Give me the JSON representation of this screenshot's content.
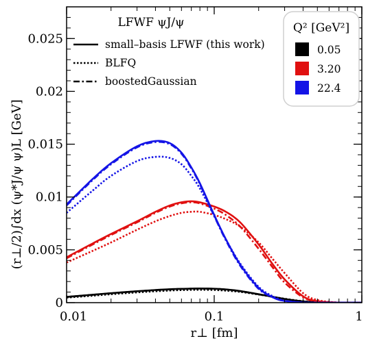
{
  "chart_data": {
    "type": "line",
    "title": "",
    "xlabel": "r⊥  [fm]",
    "ylabel": "(r⊥/2)∫dx (ψ*J/ψ ψ)L  [GeV]",
    "x_scale": "log",
    "xlim": [
      0.01,
      1
    ],
    "ylim": [
      0,
      0.028
    ],
    "grid": false,
    "x_ticks": [
      0.01,
      0.1,
      1
    ],
    "x_tick_labels": [
      "0.01",
      "0.1",
      "1"
    ],
    "y_ticks": [
      0,
      0.005,
      0.01,
      0.015,
      0.02,
      0.025
    ],
    "y_tick_labels": [
      "0",
      "0.005",
      "0.01",
      "0.015",
      "0.02",
      "0.025"
    ],
    "legend_linestyle": {
      "title": "LFWF ψJ/ψ",
      "placement": "top-left",
      "entries": [
        {
          "label": "small–basis LFWF (this work)",
          "style": "solid"
        },
        {
          "label": "BLFQ",
          "style": "dotted"
        },
        {
          "label": "boostedGaussian",
          "style": "dashdot"
        }
      ]
    },
    "legend_color": {
      "title": "Q² [GeV²]",
      "placement": "top-right",
      "entries": [
        {
          "label": "0.05",
          "color": "#000000"
        },
        {
          "label": "3.20",
          "color": "#e01010"
        },
        {
          "label": "22.4",
          "color": "#1414e6"
        }
      ]
    },
    "x": [
      0.01,
      0.015,
      0.02,
      0.03,
      0.04,
      0.05,
      0.06,
      0.07,
      0.08,
      0.1,
      0.12,
      0.15,
      0.2,
      0.25,
      0.3,
      0.4,
      0.5,
      0.7,
      1.0
    ],
    "series": [
      {
        "group": "0.05",
        "style": "solid",
        "color": "#000000",
        "values": [
          0.00055,
          0.00075,
          0.0009,
          0.00108,
          0.0012,
          0.00127,
          0.00131,
          0.00133,
          0.00134,
          0.00132,
          0.00125,
          0.0011,
          0.0008,
          0.00055,
          0.00035,
          0.00012,
          4e-05,
          5e-06,
          0.0
        ]
      },
      {
        "group": "0.05",
        "style": "dotted",
        "color": "#000000",
        "values": [
          0.00048,
          0.00066,
          0.0008,
          0.00097,
          0.00108,
          0.00115,
          0.00119,
          0.00121,
          0.00122,
          0.0012,
          0.00114,
          0.00102,
          0.00077,
          0.00055,
          0.00037,
          0.00014,
          5e-05,
          6e-06,
          0.0
        ]
      },
      {
        "group": "0.05",
        "style": "dashdot",
        "color": "#000000",
        "values": [
          0.00054,
          0.00074,
          0.00089,
          0.00107,
          0.00119,
          0.00126,
          0.0013,
          0.00132,
          0.00133,
          0.00131,
          0.00124,
          0.00109,
          0.00079,
          0.00054,
          0.00034,
          0.00011,
          4e-05,
          5e-06,
          0.0
        ]
      },
      {
        "group": "3.20",
        "style": "solid",
        "color": "#e01010",
        "values": [
          0.0043,
          0.0056,
          0.0065,
          0.0077,
          0.0086,
          0.0092,
          0.0095,
          0.0096,
          0.0095,
          0.0091,
          0.0086,
          0.0076,
          0.0055,
          0.0036,
          0.0022,
          0.0006,
          0.00014,
          5e-06,
          0.0
        ]
      },
      {
        "group": "3.20",
        "style": "dotted",
        "color": "#e01010",
        "values": [
          0.0038,
          0.0049,
          0.0057,
          0.0069,
          0.0077,
          0.0082,
          0.0085,
          0.0086,
          0.0086,
          0.0083,
          0.0079,
          0.0072,
          0.0057,
          0.0041,
          0.0028,
          0.0009,
          0.00025,
          1e-05,
          0.0
        ]
      },
      {
        "group": "3.20",
        "style": "dashdot",
        "color": "#e01010",
        "values": [
          0.0042,
          0.0055,
          0.0064,
          0.0076,
          0.0085,
          0.0091,
          0.0094,
          0.0095,
          0.0094,
          0.0089,
          0.0083,
          0.0072,
          0.0051,
          0.0033,
          0.0019,
          0.0005,
          0.00012,
          4e-06,
          0.0
        ]
      },
      {
        "group": "22.4",
        "style": "solid",
        "color": "#1414e6",
        "values": [
          0.0093,
          0.0117,
          0.0132,
          0.0148,
          0.0153,
          0.0151,
          0.0142,
          0.0128,
          0.0113,
          0.0083,
          0.006,
          0.0036,
          0.0014,
          0.0005,
          0.00016,
          1e-05,
          0.0,
          0.0,
          0.0
        ]
      },
      {
        "group": "22.4",
        "style": "dotted",
        "color": "#1414e6",
        "values": [
          0.0085,
          0.0106,
          0.012,
          0.0134,
          0.0138,
          0.0137,
          0.0131,
          0.012,
          0.0108,
          0.0082,
          0.006,
          0.0037,
          0.0015,
          0.0006,
          0.0002,
          1e-05,
          0.0,
          0.0,
          0.0
        ]
      },
      {
        "group": "22.4",
        "style": "dashdot",
        "color": "#1414e6",
        "values": [
          0.0092,
          0.0116,
          0.0131,
          0.0147,
          0.0152,
          0.015,
          0.0141,
          0.0127,
          0.0112,
          0.0082,
          0.0059,
          0.0035,
          0.0013,
          0.0005,
          0.00015,
          1e-05,
          0.0,
          0.0,
          0.0
        ]
      }
    ]
  }
}
